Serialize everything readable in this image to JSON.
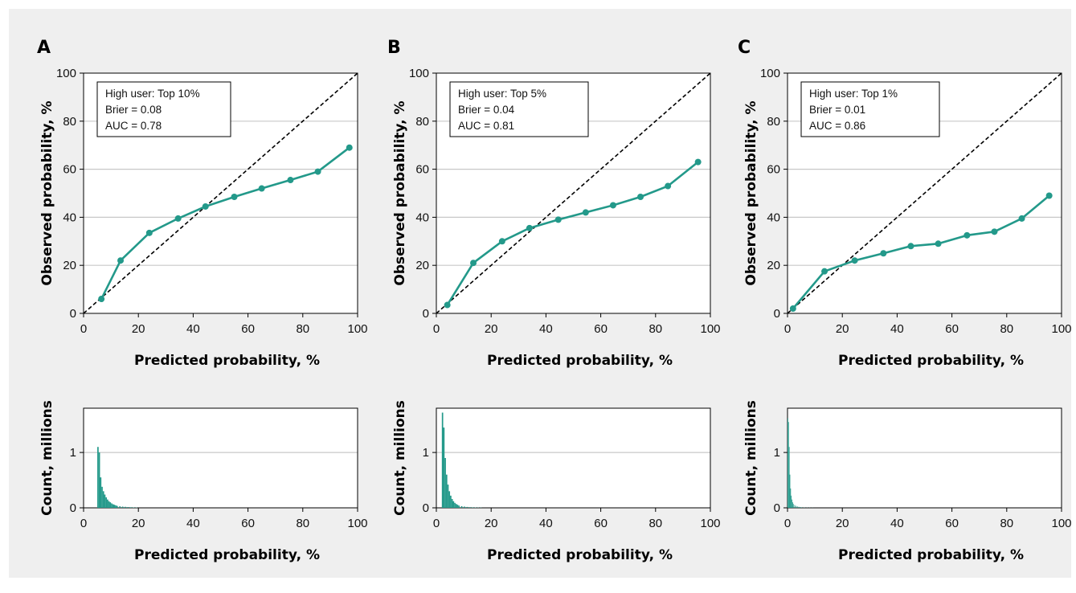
{
  "colors": {
    "series": "#23998a",
    "background": "#efefef",
    "grid": "#c8c8c8",
    "diagonal": "#000000"
  },
  "chart_data": [
    {
      "panel": "A",
      "type": "line",
      "annotation": [
        "High user: Top 10%",
        "Brier = 0.08",
        "AUC = 0.78"
      ],
      "xlabel": "Predicted probability, %",
      "ylabel": "Observed probability, %",
      "xlim": [
        0,
        100
      ],
      "ylim": [
        0,
        100
      ],
      "xticks": [
        "0",
        "20",
        "40",
        "60",
        "80",
        "100"
      ],
      "yticks": [
        "0",
        "20",
        "40",
        "60",
        "80",
        "100"
      ],
      "reference_line": "diagonal",
      "grid": "horizontal",
      "x": [
        6.5,
        13.5,
        24,
        34.5,
        44.5,
        55,
        65,
        75.5,
        85.5,
        97
      ],
      "y": [
        6,
        22,
        33.5,
        39.5,
        44.5,
        48.5,
        52,
        55.5,
        59,
        69
      ]
    },
    {
      "panel": "B",
      "type": "line",
      "annotation": [
        "High user: Top 5%",
        "Brier = 0.04",
        "AUC = 0.81"
      ],
      "xlabel": "Predicted probability, %",
      "ylabel": "Observed probability, %",
      "xlim": [
        0,
        100
      ],
      "ylim": [
        0,
        100
      ],
      "xticks": [
        "0",
        "20",
        "40",
        "60",
        "80",
        "100"
      ],
      "yticks": [
        "0",
        "20",
        "40",
        "60",
        "80",
        "100"
      ],
      "reference_line": "diagonal",
      "grid": "horizontal",
      "x": [
        4,
        13.5,
        24,
        34,
        44.5,
        54.5,
        64.5,
        74.5,
        84.5,
        95.5
      ],
      "y": [
        3.5,
        21,
        30,
        35.5,
        39,
        42,
        45,
        48.5,
        53,
        63
      ]
    },
    {
      "panel": "C",
      "type": "line",
      "annotation": [
        "High user: Top 1%",
        "Brier = 0.01",
        "AUC = 0.86"
      ],
      "xlabel": "Predicted probability, %",
      "ylabel": "Observed probability, %",
      "xlim": [
        0,
        100
      ],
      "ylim": [
        0,
        100
      ],
      "xticks": [
        "0",
        "20",
        "40",
        "60",
        "80",
        "100"
      ],
      "yticks": [
        "0",
        "20",
        "40",
        "60",
        "80",
        "100"
      ],
      "reference_line": "diagonal",
      "grid": "horizontal",
      "x": [
        2,
        13.5,
        24.5,
        35,
        45,
        55,
        65.5,
        75.5,
        85.5,
        95.5
      ],
      "y": [
        2,
        17.5,
        22,
        25,
        28,
        29,
        32.5,
        34,
        39.5,
        49
      ]
    },
    {
      "panel": "A",
      "type": "bar",
      "xlabel": "Predicted probability, %",
      "ylabel": "Count, millions",
      "xlim": [
        0,
        100
      ],
      "ylim": [
        0,
        1.8
      ],
      "xticks": [
        "0",
        "20",
        "40",
        "60",
        "80",
        "100"
      ],
      "yticks": [
        "0",
        "1"
      ],
      "grid": "horizontal",
      "bin_width": 0.5,
      "bin_start": [
        5,
        5.5,
        6,
        6.5,
        7,
        7.5,
        8,
        8.5,
        9,
        9.5,
        10,
        10.5,
        11,
        11.5,
        12,
        13,
        14,
        15,
        16,
        17,
        18,
        19
      ],
      "values": [
        1.1,
        1.0,
        0.55,
        0.38,
        0.3,
        0.24,
        0.19,
        0.15,
        0.12,
        0.1,
        0.08,
        0.065,
        0.055,
        0.045,
        0.035,
        0.028,
        0.022,
        0.018,
        0.014,
        0.011,
        0.008,
        0.006
      ]
    },
    {
      "panel": "B",
      "type": "bar",
      "xlabel": "Predicted probability, %",
      "ylabel": "Count, millions",
      "xlim": [
        0,
        100
      ],
      "ylim": [
        0,
        1.8
      ],
      "xticks": [
        "0",
        "20",
        "40",
        "60",
        "80",
        "100"
      ],
      "yticks": [
        "0",
        "1"
      ],
      "grid": "horizontal",
      "bin_width": 0.5,
      "bin_start": [
        2,
        2.5,
        3,
        3.5,
        4,
        4.5,
        5,
        5.5,
        6,
        6.5,
        7,
        7.5,
        8,
        9,
        10,
        11,
        12,
        13,
        14,
        15,
        16
      ],
      "values": [
        1.72,
        1.45,
        0.9,
        0.6,
        0.42,
        0.3,
        0.22,
        0.16,
        0.12,
        0.09,
        0.07,
        0.055,
        0.04,
        0.03,
        0.022,
        0.016,
        0.012,
        0.009,
        0.007,
        0.005,
        0.004
      ]
    },
    {
      "panel": "C",
      "type": "bar",
      "xlabel": "Predicted probability, %",
      "ylabel": "Count, millions",
      "xlim": [
        0,
        100
      ],
      "ylim": [
        0,
        1.8
      ],
      "xticks": [
        "0",
        "20",
        "40",
        "60",
        "80",
        "100"
      ],
      "yticks": [
        "0",
        "1"
      ],
      "grid": "horizontal",
      "bin_width": 0.25,
      "bin_start": [
        0,
        0.25,
        0.5,
        0.75,
        1,
        1.25,
        1.5,
        1.75,
        2,
        2.5,
        3,
        3.5,
        4,
        4.5,
        5,
        6,
        7,
        8,
        9
      ],
      "values": [
        1.62,
        1.55,
        1.1,
        0.6,
        0.35,
        0.22,
        0.15,
        0.1,
        0.07,
        0.05,
        0.035,
        0.025,
        0.018,
        0.013,
        0.01,
        0.007,
        0.005,
        0.004,
        0.003
      ]
    }
  ]
}
